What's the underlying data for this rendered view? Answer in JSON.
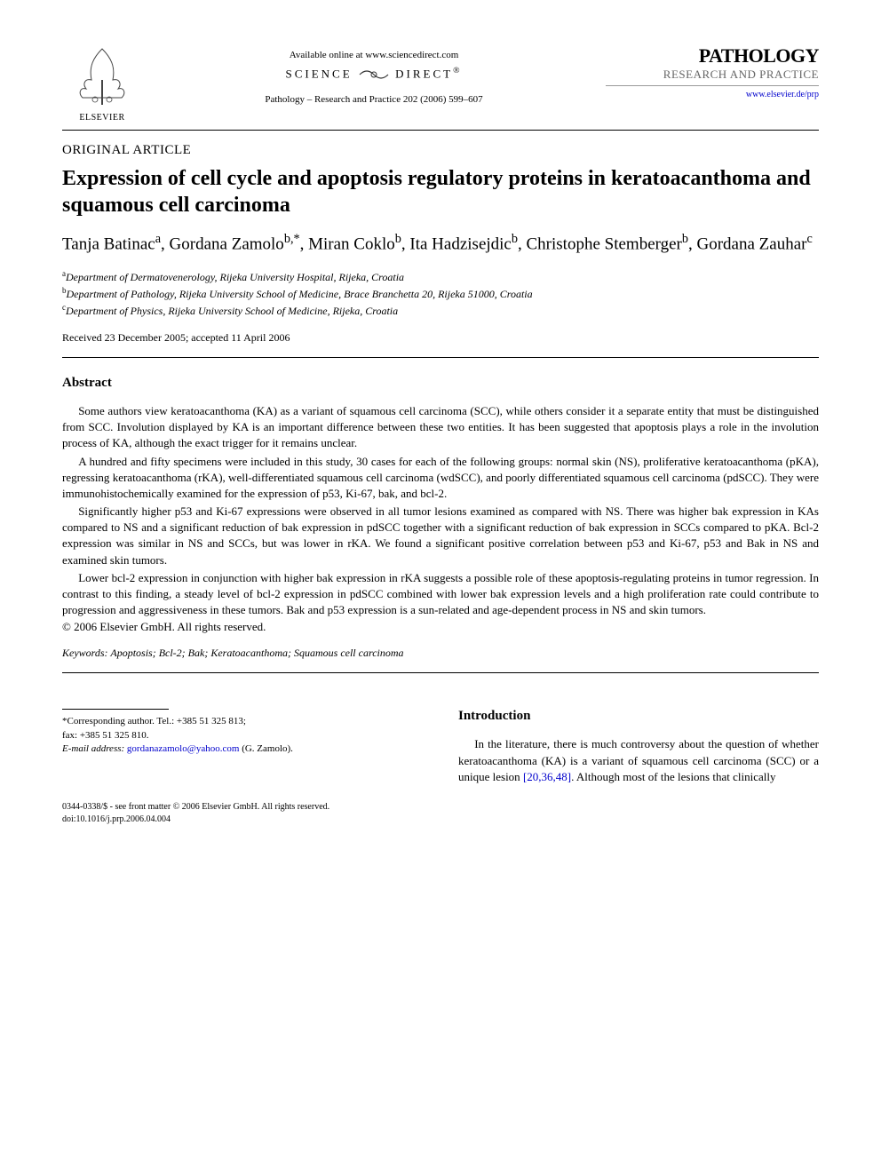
{
  "header": {
    "elsevier_label": "ELSEVIER",
    "available_online": "Available online at www.sciencedirect.com",
    "sciencedirect_left": "SCIENCE",
    "sciencedirect_right": "DIRECT",
    "citation": "Pathology – Research and Practice 202 (2006) 599–607",
    "journal_name_1": "PATHOLOGY",
    "journal_name_2": "RESEARCH AND PRACTICE",
    "journal_url": "www.elsevier.de/prp"
  },
  "article": {
    "type": "ORIGINAL ARTICLE",
    "title": "Expression of cell cycle and apoptosis regulatory proteins in keratoacanthoma and squamous cell carcinoma",
    "authors_html": "Tanja Batinac<sup>a</sup>, Gordana Zamolo<sup>b,*</sup>, Miran Coklo<sup>b</sup>, Ita Hadzisejdic<sup>b</sup>, Christophe Stemberger<sup>b</sup>, Gordana Zauhar<sup>c</sup>",
    "affiliations": [
      {
        "sup": "a",
        "text": "Department of Dermatovenerology, Rijeka University Hospital, Rijeka, Croatia"
      },
      {
        "sup": "b",
        "text": "Department of Pathology, Rijeka University School of Medicine, Brace Branchetta 20, Rijeka 51000, Croatia"
      },
      {
        "sup": "c",
        "text": "Department of Physics, Rijeka University School of Medicine, Rijeka, Croatia"
      }
    ],
    "dates": "Received 23 December 2005; accepted 11 April 2006"
  },
  "abstract": {
    "heading": "Abstract",
    "paragraphs": [
      "Some authors view keratoacanthoma (KA) as a variant of squamous cell carcinoma (SCC), while others consider it a separate entity that must be distinguished from SCC. Involution displayed by KA is an important difference between these two entities. It has been suggested that apoptosis plays a role in the involution process of KA, although the exact trigger for it remains unclear.",
      "A hundred and fifty specimens were included in this study, 30 cases for each of the following groups: normal skin (NS), proliferative keratoacanthoma (pKA), regressing keratoacanthoma (rKA), well-differentiated squamous cell carcinoma (wdSCC), and poorly differentiated squamous cell carcinoma (pdSCC). They were immunohistochemically examined for the expression of p53, Ki-67, bak, and bcl-2.",
      "Significantly higher p53 and Ki-67 expressions were observed in all tumor lesions examined as compared with NS. There was higher bak expression in KAs compared to NS and a significant reduction of bak expression in pdSCC together with a significant reduction of bak expression in SCCs compared to pKA. Bcl-2 expression was similar in NS and SCCs, but was lower in rKA. We found a significant positive correlation between p53 and Ki-67, p53 and Bak in NS and examined skin tumors.",
      "Lower bcl-2 expression in conjunction with higher bak expression in rKA suggests a possible role of these apoptosis-regulating proteins in tumor regression. In contrast to this finding, a steady level of bcl-2 expression in pdSCC combined with lower bak expression levels and a high proliferation rate could contribute to progression and aggressiveness in these tumors. Bak and p53 expression is a sun-related and age-dependent process in NS and skin tumors."
    ],
    "copyright": "© 2006 Elsevier GmbH. All rights reserved.",
    "keywords_label": "Keywords:",
    "keywords": "Apoptosis; Bcl-2; Bak; Keratoacanthoma; Squamous cell carcinoma"
  },
  "footnote": {
    "corresponding": "*Corresponding author. Tel.: +385 51 325 813;",
    "fax": "fax: +385 51 325 810.",
    "email_label": "E-mail address:",
    "email": "gordanazamolo@yahoo.com",
    "email_author": "(G. Zamolo)."
  },
  "intro": {
    "heading": "Introduction",
    "paragraph": "In the literature, there is much controversy about the question of whether keratoacanthoma (KA) is a variant of squamous cell carcinoma (SCC) or a unique lesion ",
    "refs": "[20,36,48]",
    "paragraph_tail": ". Although most of the lesions that clinically"
  },
  "bottom": {
    "line1": "0344-0338/$ - see front matter © 2006 Elsevier GmbH. All rights reserved.",
    "line2": "doi:10.1016/j.prp.2006.04.004"
  },
  "colors": {
    "link": "#0000cc",
    "text": "#000000",
    "muted": "#666666"
  }
}
